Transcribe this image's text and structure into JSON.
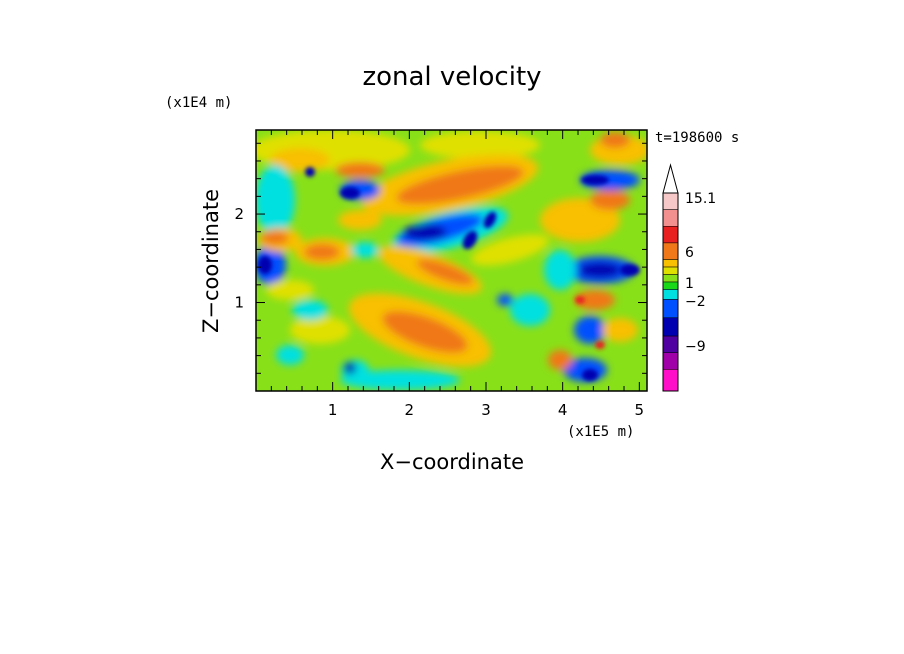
{
  "chart_data": {
    "type": "heatmap",
    "title": "zonal velocity",
    "xlabel": "X−coordinate",
    "ylabel": "Z−coordinate",
    "x_unit": "(x1E5 m)",
    "y_unit": "(x1E4 m)",
    "time_label": "t=198600 s",
    "xlim": [
      0,
      5.1
    ],
    "ylim": [
      0,
      2.95
    ],
    "x_ticks": [
      "1",
      "2",
      "3",
      "4",
      "5"
    ],
    "x_tick_values": [
      1,
      2,
      3,
      4,
      5
    ],
    "y_ticks": [
      "1",
      "2"
    ],
    "y_tick_values": [
      1,
      2
    ],
    "colorbar": {
      "labels": [
        "15.1",
        "6",
        "1",
        "−2",
        "−9"
      ],
      "label_values": [
        15.1,
        6,
        1,
        -2,
        -9
      ],
      "colors_top_to_bottom": [
        "#f7c8c8",
        "#f29090",
        "#e82020",
        "#f07818",
        "#f8c000",
        "#e0e000",
        "#88e018",
        "#18d818",
        "#00e0e0",
        "#0050ff",
        "#0000b0",
        "#5000a0",
        "#a000a8",
        "#ff10c8"
      ]
    },
    "grid": false
  }
}
